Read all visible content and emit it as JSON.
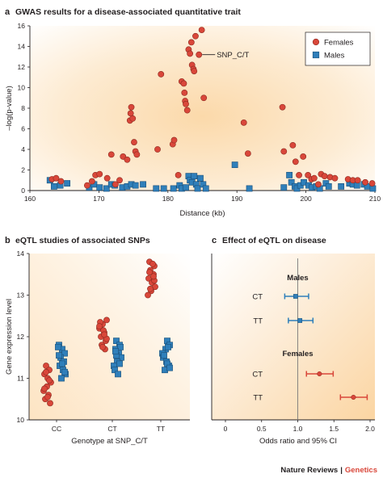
{
  "colors": {
    "female": "#d9473a",
    "male": "#2f7fba",
    "axis": "#231f20",
    "footer_brand": "#d9473a"
  },
  "panel_a": {
    "letter": "a",
    "title": "GWAS results for a disease-associated quantitative trait",
    "legend": {
      "female": "Females",
      "male": "Males"
    },
    "annotation": "SNP_C/T"
  },
  "panel_b": {
    "letter": "b",
    "title": "eQTL studies of associated SNPs"
  },
  "panel_c": {
    "letter": "c",
    "title": "Effect of eQTL on disease"
  },
  "footer": {
    "journal": "Nature Reviews",
    "separator": "|",
    "subject": "Genetics"
  },
  "chart_data": [
    {
      "type": "scatter",
      "xlabel": "Distance (kb)",
      "ylabel": "–log(p-value)",
      "xlim": [
        160,
        210
      ],
      "ylim": [
        0,
        16
      ],
      "xticks": [
        160,
        170,
        180,
        190,
        200,
        210
      ],
      "yticks": [
        0,
        2,
        4,
        6,
        8,
        10,
        12,
        14,
        16
      ],
      "legend_position": "top-right",
      "series": [
        {
          "name": "Females",
          "points": [
            [
              163.2,
              1.1
            ],
            [
              163.8,
              1.2
            ],
            [
              164.5,
              0.9
            ],
            [
              168.3,
              0.5
            ],
            [
              169,
              0.9
            ],
            [
              169.5,
              1.5
            ],
            [
              170.1,
              1.6
            ],
            [
              171.2,
              1.2
            ],
            [
              171.8,
              3.5
            ],
            [
              172.4,
              0.6
            ],
            [
              173,
              1.0
            ],
            [
              173.5,
              3.3
            ],
            [
              174.1,
              3.0
            ],
            [
              174.5,
              6.8
            ],
            [
              174.6,
              7.5
            ],
            [
              174.7,
              8.1
            ],
            [
              174.9,
              7.0
            ],
            [
              175.1,
              4.7
            ],
            [
              175.3,
              3.8
            ],
            [
              175.5,
              3.5
            ],
            [
              178.5,
              4.0
            ],
            [
              179,
              11.3
            ],
            [
              180.7,
              4.5
            ],
            [
              180.9,
              4.9
            ],
            [
              181.5,
              1.5
            ],
            [
              182,
              10.6
            ],
            [
              182.3,
              10.4
            ],
            [
              182.4,
              9.5
            ],
            [
              182.5,
              8.7
            ],
            [
              182.6,
              8.4
            ],
            [
              182.8,
              7.8
            ],
            [
              183,
              13.7
            ],
            [
              183.2,
              13.3
            ],
            [
              183.4,
              14.4
            ],
            [
              183.5,
              12.2
            ],
            [
              183.7,
              11.8
            ],
            [
              183.8,
              11.6
            ],
            [
              184.0,
              15.0
            ],
            [
              184.5,
              13.2
            ],
            [
              184.9,
              15.6
            ],
            [
              185.2,
              9.0
            ],
            [
              191,
              6.6
            ],
            [
              191.6,
              3.6
            ],
            [
              196.6,
              8.1
            ],
            [
              196.8,
              3.8
            ],
            [
              198.1,
              4.4
            ],
            [
              198.5,
              2.8
            ],
            [
              199,
              1.5
            ],
            [
              199.6,
              3.3
            ],
            [
              200.3,
              1.5
            ],
            [
              200.8,
              1.1
            ],
            [
              201.2,
              1.2
            ],
            [
              201.8,
              0.6
            ],
            [
              202.2,
              1.6
            ],
            [
              202.7,
              1.4
            ],
            [
              203.5,
              1.3
            ],
            [
              204.2,
              1.2
            ],
            [
              206.1,
              1.1
            ],
            [
              206.8,
              1.0
            ],
            [
              207.5,
              1.0
            ],
            [
              208.6,
              0.8
            ],
            [
              209.6,
              0.7
            ]
          ]
        },
        {
          "name": "Males",
          "points": [
            [
              162.9,
              1.0
            ],
            [
              163.5,
              0.4
            ],
            [
              164.4,
              0.5
            ],
            [
              165.4,
              0.7
            ],
            [
              168.6,
              0.3
            ],
            [
              169.3,
              0.6
            ],
            [
              170.1,
              0.3
            ],
            [
              171.1,
              0.2
            ],
            [
              171.8,
              0.6
            ],
            [
              172.3,
              0.5
            ],
            [
              173.4,
              0.3
            ],
            [
              174.1,
              0.4
            ],
            [
              174.7,
              0.6
            ],
            [
              175.3,
              0.5
            ],
            [
              176.4,
              0.6
            ],
            [
              178.3,
              0.2
            ],
            [
              179.4,
              0.2
            ],
            [
              180.8,
              0.2
            ],
            [
              181.7,
              0.5
            ],
            [
              182,
              0.2
            ],
            [
              182.6,
              0.3
            ],
            [
              183,
              1.4
            ],
            [
              183.2,
              1.0
            ],
            [
              183.5,
              0.8
            ],
            [
              183.8,
              1.4
            ],
            [
              184.1,
              0.6
            ],
            [
              184.3,
              0.2
            ],
            [
              184.7,
              1.2
            ],
            [
              185.1,
              0.6
            ],
            [
              185.5,
              0.2
            ],
            [
              189.7,
              2.5
            ],
            [
              191.8,
              0.2
            ],
            [
              196.8,
              0.3
            ],
            [
              197.6,
              1.5
            ],
            [
              197.9,
              0.8
            ],
            [
              198.4,
              0.4
            ],
            [
              198.7,
              0.2
            ],
            [
              199.2,
              0.5
            ],
            [
              199.7,
              0.8
            ],
            [
              200.4,
              0.5
            ],
            [
              200.9,
              0.3
            ],
            [
              201.5,
              0.4
            ],
            [
              202,
              0.2
            ],
            [
              202.9,
              0.7
            ],
            [
              203.3,
              0.4
            ],
            [
              205.1,
              0.4
            ],
            [
              206.3,
              0.7
            ],
            [
              206.8,
              0.6
            ],
            [
              207.4,
              0.5
            ],
            [
              208.4,
              0.6
            ],
            [
              208.9,
              0.4
            ],
            [
              209.7,
              0.2
            ]
          ]
        }
      ]
    },
    {
      "type": "scatter",
      "xlabel": "Genotype at SNP_C/T",
      "ylabel": "Gene expression level",
      "categories": [
        "CC",
        "CT",
        "TT"
      ],
      "ylim": [
        10,
        14
      ],
      "yticks": [
        10,
        11,
        12,
        13,
        14
      ],
      "series": [
        {
          "name": "Females",
          "points": [
            [
              "CC",
              11.3
            ],
            [
              "CC",
              11.2
            ],
            [
              "CC",
              11.1
            ],
            [
              "CC",
              11.0
            ],
            [
              "CC",
              10.9
            ],
            [
              "CC",
              10.8
            ],
            [
              "CC",
              10.7
            ],
            [
              "CC",
              10.6
            ],
            [
              "CC",
              10.5
            ],
            [
              "CC",
              10.4
            ],
            [
              "CC",
              11.15
            ],
            [
              "CC",
              10.95
            ],
            [
              "CC",
              10.75
            ],
            [
              "CC",
              10.55
            ],
            [
              "CT",
              12.4
            ],
            [
              "CT",
              12.3
            ],
            [
              "CT",
              12.2
            ],
            [
              "CT",
              12.1
            ],
            [
              "CT",
              12.0
            ],
            [
              "CT",
              11.9
            ],
            [
              "CT",
              11.8
            ],
            [
              "CT",
              11.7
            ],
            [
              "CT",
              12.35
            ],
            [
              "CT",
              12.15
            ],
            [
              "CT",
              11.95
            ],
            [
              "CT",
              11.75
            ],
            [
              "CT",
              12.25
            ],
            [
              "CT",
              12.05
            ],
            [
              "TT",
              13.8
            ],
            [
              "TT",
              13.7
            ],
            [
              "TT",
              13.6
            ],
            [
              "TT",
              13.5
            ],
            [
              "TT",
              13.4
            ],
            [
              "TT",
              13.3
            ],
            [
              "TT",
              13.2
            ],
            [
              "TT",
              13.1
            ],
            [
              "TT",
              13.0
            ],
            [
              "TT",
              13.75
            ],
            [
              "TT",
              13.55
            ],
            [
              "TT",
              13.35
            ],
            [
              "TT",
              13.15
            ],
            [
              "TT",
              13.45
            ]
          ]
        },
        {
          "name": "Males",
          "points": [
            [
              "CC",
              11.8
            ],
            [
              "CC",
              11.7
            ],
            [
              "CC",
              11.6
            ],
            [
              "CC",
              11.5
            ],
            [
              "CC",
              11.4
            ],
            [
              "CC",
              11.3
            ],
            [
              "CC",
              11.2
            ],
            [
              "CC",
              11.1
            ],
            [
              "CC",
              11.0
            ],
            [
              "CC",
              11.75
            ],
            [
              "CC",
              11.55
            ],
            [
              "CC",
              11.35
            ],
            [
              "CC",
              11.15
            ],
            [
              "CT",
              11.9
            ],
            [
              "CT",
              11.8
            ],
            [
              "CT",
              11.7
            ],
            [
              "CT",
              11.6
            ],
            [
              "CT",
              11.5
            ],
            [
              "CT",
              11.4
            ],
            [
              "CT",
              11.3
            ],
            [
              "CT",
              11.2
            ],
            [
              "CT",
              11.1
            ],
            [
              "CT",
              11.75
            ],
            [
              "CT",
              11.55
            ],
            [
              "CT",
              11.35
            ],
            [
              "CT",
              11.65
            ],
            [
              "TT",
              11.9
            ],
            [
              "TT",
              11.8
            ],
            [
              "TT",
              11.7
            ],
            [
              "TT",
              11.6
            ],
            [
              "TT",
              11.5
            ],
            [
              "TT",
              11.4
            ],
            [
              "TT",
              11.3
            ],
            [
              "TT",
              11.2
            ],
            [
              "TT",
              11.75
            ],
            [
              "TT",
              11.55
            ],
            [
              "TT",
              11.35
            ],
            [
              "TT",
              11.25
            ]
          ]
        }
      ]
    },
    {
      "type": "forest",
      "xlabel": "Odds ratio and 95% CI",
      "xlim": [
        0,
        2.2
      ],
      "xticks": [
        0,
        0.5,
        1.0,
        1.5,
        2.0
      ],
      "reference_line": 1.0,
      "groups": [
        {
          "name": "Males",
          "rows": [
            {
              "label": "CT",
              "or": 0.97,
              "low": 0.82,
              "high": 1.15
            },
            {
              "label": "TT",
              "or": 1.03,
              "low": 0.87,
              "high": 1.21
            }
          ]
        },
        {
          "name": "Females",
          "rows": [
            {
              "label": "CT",
              "or": 1.3,
              "low": 1.12,
              "high": 1.49
            },
            {
              "label": "TT",
              "or": 1.77,
              "low": 1.59,
              "high": 1.96
            }
          ]
        }
      ]
    }
  ]
}
